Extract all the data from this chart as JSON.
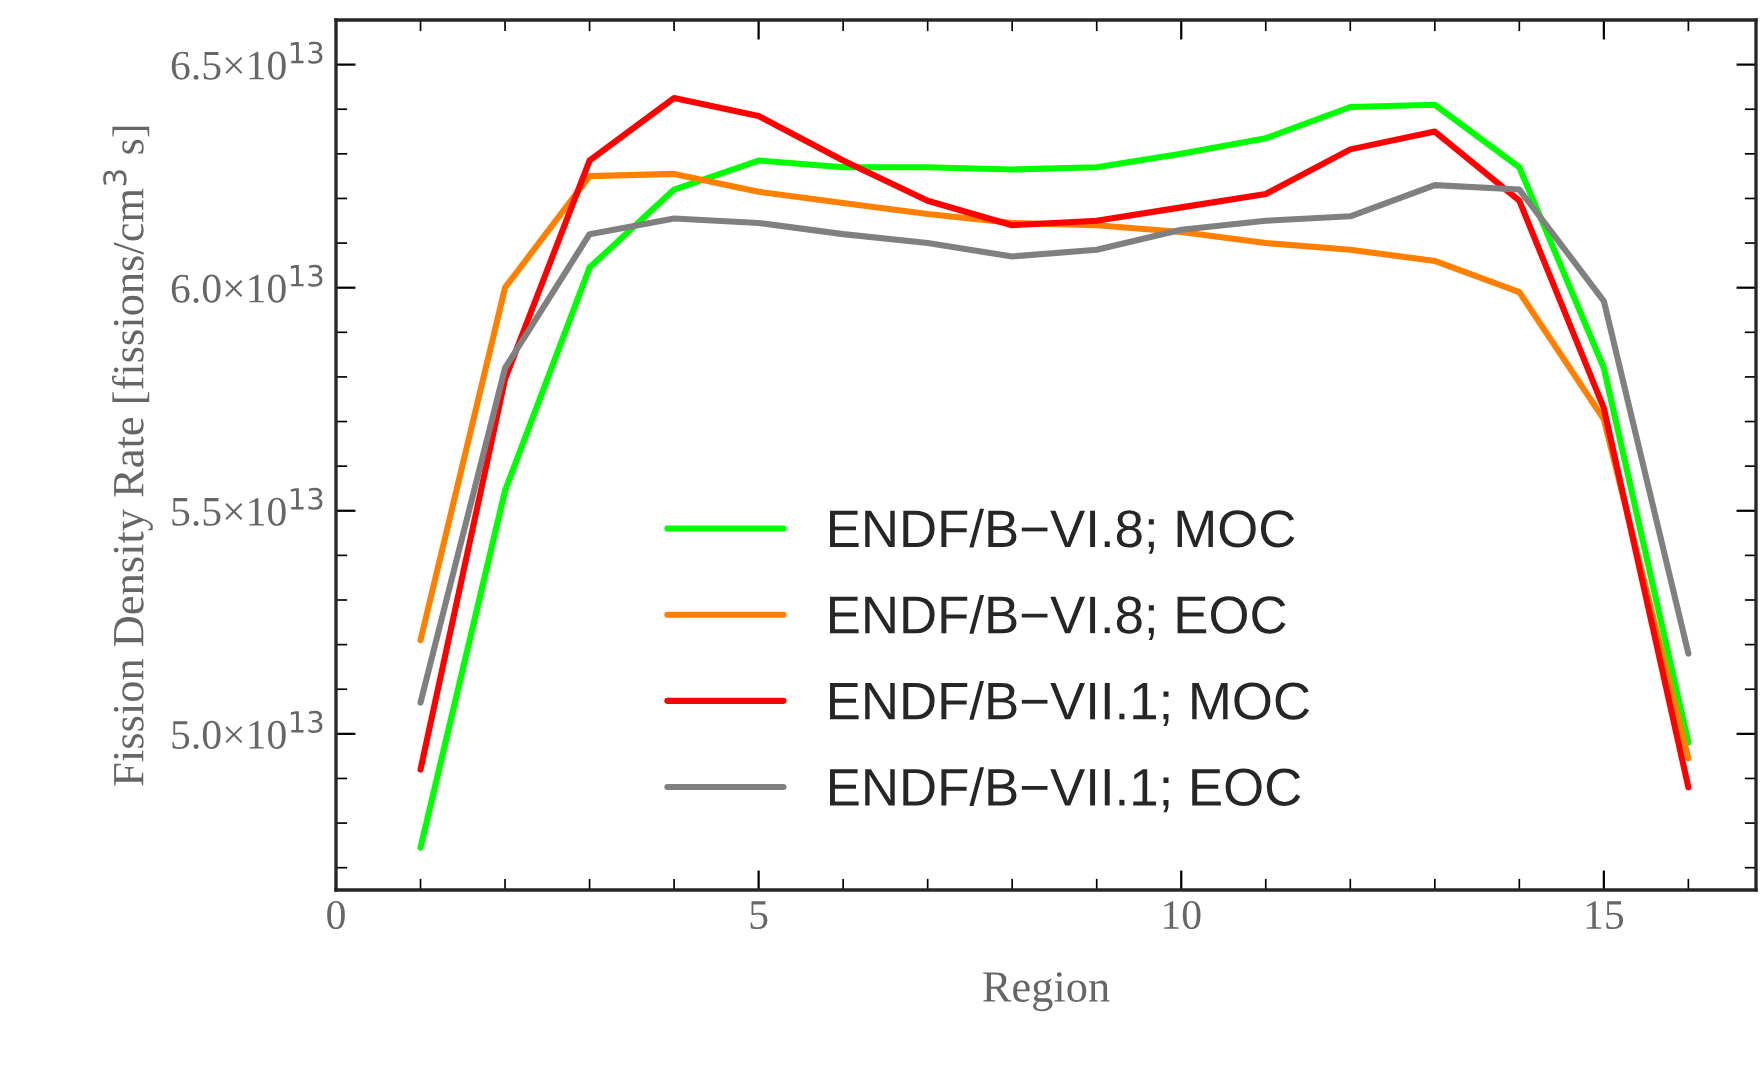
{
  "chart_data": {
    "type": "line",
    "xlabel": "Region",
    "ylabel": "Fission Density Rate [fissions/cm$^{3}$ s]",
    "x": [
      1,
      2,
      3,
      4,
      5,
      6,
      7,
      8,
      9,
      10,
      11,
      12,
      13,
      14,
      15,
      16
    ],
    "series": [
      {
        "name": "ENDF/B−VI.8; MOC",
        "color": "#00ff00",
        "values": [
          47450000000000.0,
          55450000000000.0,
          60450000000000.0,
          62200000000000.0,
          62850000000000.0,
          62700000000000.0,
          62700000000000.0,
          62650000000000.0,
          62700000000000.0,
          63000000000000.0,
          63350000000000.0,
          64050000000000.0,
          64100000000000.0,
          62700000000000.0,
          58200000000000.0,
          49800000000000.0
        ]
      },
      {
        "name": "ENDF/B−VI.8; EOC",
        "color": "#ff8000",
        "values": [
          52100000000000.0,
          60000000000000.0,
          62500000000000.0,
          62550000000000.0,
          62150000000000.0,
          61900000000000.0,
          61650000000000.0,
          61450000000000.0,
          61400000000000.0,
          61250000000000.0,
          61000000000000.0,
          60850000000000.0,
          60600000000000.0,
          59900000000000.0,
          57050000000000.0,
          49450000000000.0
        ]
      },
      {
        "name": "ENDF/B−VII.1; MOC",
        "color": "#ff0000",
        "values": [
          49200000000000.0,
          57950000000000.0,
          62850000000000.0,
          64250000000000.0,
          63850000000000.0,
          62850000000000.0,
          61950000000000.0,
          61400000000000.0,
          61500000000000.0,
          61800000000000.0,
          62100000000000.0,
          63100000000000.0,
          63500000000000.0,
          61950000000000.0,
          57300000000000.0,
          48800000000000.0
        ]
      },
      {
        "name": "ENDF/B−VII.1; EOC",
        "color": "#808080",
        "values": [
          50700000000000.0,
          58200000000000.0,
          61200000000000.0,
          61550000000000.0,
          61450000000000.0,
          61200000000000.0,
          61000000000000.0,
          60700000000000.0,
          60850000000000.0,
          61300000000000.0,
          61500000000000.0,
          61600000000000.0,
          62300000000000.0,
          62200000000000.0,
          59700000000000.0,
          51800000000000.0
        ]
      }
    ],
    "xlim": [
      0,
      16.8
    ],
    "xticks": [
      0,
      5,
      10,
      15
    ],
    "ylim": [
      46500000000000.0,
      66000000000000.0
    ],
    "yticks": [
      {
        "value": 50000000000000.0,
        "label": "5.0×10$^{13}$"
      },
      {
        "value": 55000000000000.0,
        "label": "5.5×10$^{13}$"
      },
      {
        "value": 60000000000000.0,
        "label": "6.0×10$^{13}$"
      },
      {
        "value": 65000000000000.0,
        "label": "6.5×10$^{13}$"
      }
    ],
    "legend": "bottom",
    "grid": false,
    "marker": "none",
    "line_style": "solid"
  }
}
